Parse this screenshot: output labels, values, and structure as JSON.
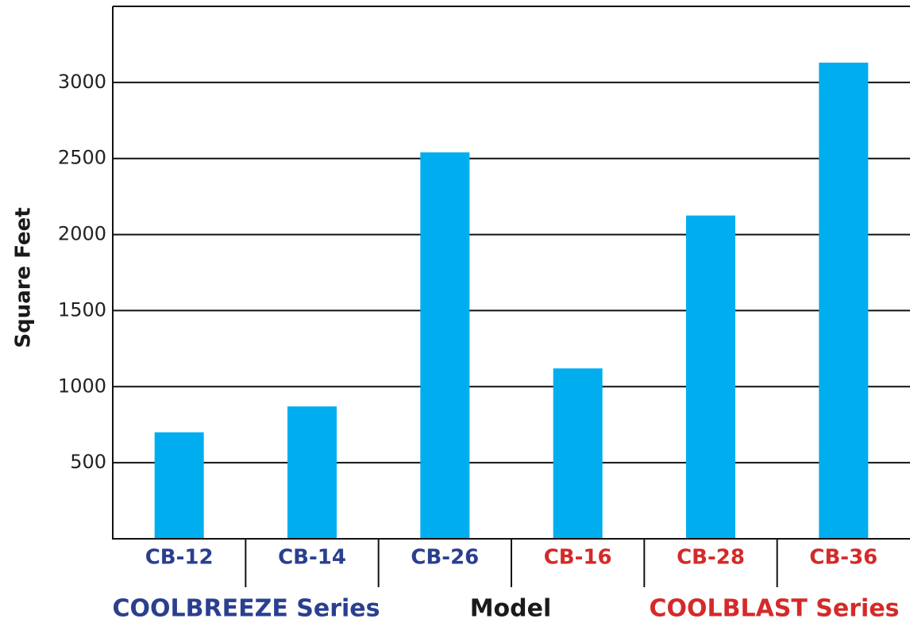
{
  "chart_data": {
    "type": "bar",
    "y_label": "Square Feet",
    "x_label": "Model",
    "categories": [
      "CB-12",
      "CB-14",
      "CB-26",
      "CB-16",
      "CB-28",
      "CB-36"
    ],
    "category_colors": [
      "#2b3f8f",
      "#2b3f8f",
      "#2b3f8f",
      "#d42a2a",
      "#d42a2a",
      "#d42a2a"
    ],
    "values": [
      700,
      870,
      2540,
      1120,
      2125,
      3130
    ],
    "color": "#00aeef",
    "groups": [
      {
        "label": "COOLBREEZE Series",
        "color": "#2b3f8f"
      },
      {
        "label": "COOLBLAST Series",
        "color": "#d42a2a"
      }
    ],
    "ylim": [
      0,
      3500
    ],
    "yticks": [
      500,
      1000,
      1500,
      2000,
      2500,
      3000
    ],
    "grid": true
  }
}
